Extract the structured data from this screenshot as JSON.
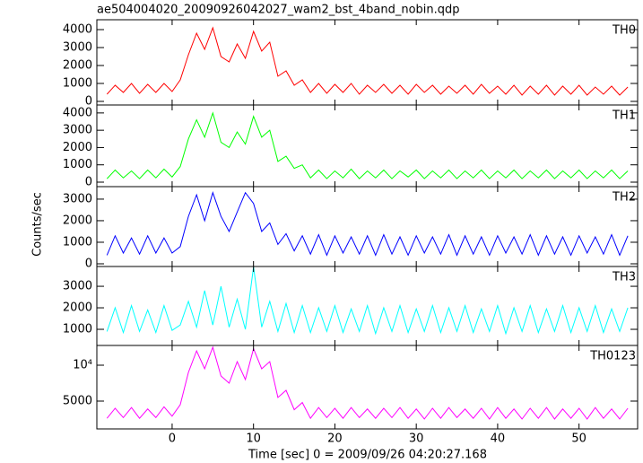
{
  "chart_data": {
    "type": "line",
    "title": "ae504004020_20090926042027_wam2_bst_4band_nobin.qdp",
    "xlabel": "Time [sec] 0 = 2009/09/26 04:20:27.168",
    "ylabel": "Counts/sec",
    "xlim": [
      -9.25,
      57.2
    ],
    "xticks": [
      0,
      10,
      20,
      30,
      40,
      50
    ],
    "x": [
      -8,
      -7,
      -6,
      -5,
      -4,
      -3,
      -2,
      -1,
      0,
      1,
      2,
      3,
      4,
      5,
      6,
      7,
      8,
      9,
      10,
      11,
      12,
      13,
      14,
      15,
      16,
      17,
      18,
      19,
      20,
      21,
      22,
      23,
      24,
      25,
      26,
      27,
      28,
      29,
      30,
      31,
      32,
      33,
      34,
      35,
      36,
      37,
      38,
      39,
      40,
      41,
      42,
      43,
      44,
      45,
      46,
      47,
      48,
      49,
      50,
      51,
      52,
      53,
      54,
      55,
      56
    ],
    "panels": [
      {
        "label": "TH0",
        "color": "#ff0000",
        "ylim": [
          -200,
          4550
        ],
        "yticks": [
          0,
          1000,
          2000,
          3000,
          4000
        ],
        "values": [
          400,
          900,
          500,
          1000,
          450,
          950,
          500,
          1000,
          550,
          1200,
          2600,
          3800,
          2900,
          4100,
          2500,
          2200,
          3200,
          2400,
          3900,
          2800,
          3300,
          1400,
          1700,
          900,
          1200,
          500,
          1000,
          450,
          950,
          500,
          1000,
          400,
          900,
          500,
          950,
          450,
          900,
          400,
          950,
          500,
          900,
          400,
          850,
          450,
          900,
          400,
          950,
          450,
          850,
          400,
          900,
          350,
          850,
          400,
          900,
          350,
          850,
          400,
          900,
          350,
          800,
          400,
          850,
          350,
          800
        ]
      },
      {
        "label": "TH1",
        "color": "#00ff00",
        "ylim": [
          -260,
          4460
        ],
        "yticks": [
          0,
          1000,
          2000,
          3000,
          4000
        ],
        "values": [
          200,
          700,
          250,
          650,
          200,
          700,
          250,
          750,
          300,
          900,
          2500,
          3600,
          2600,
          4000,
          2300,
          2000,
          2900,
          2200,
          3800,
          2600,
          3000,
          1200,
          1500,
          800,
          1000,
          250,
          700,
          200,
          650,
          250,
          750,
          200,
          650,
          250,
          700,
          200,
          650,
          300,
          700,
          200,
          650,
          250,
          700,
          200,
          650,
          250,
          700,
          200,
          650,
          250,
          700,
          200,
          650,
          250,
          700,
          200,
          650,
          250,
          700,
          200,
          650,
          250,
          700,
          200,
          650
        ]
      },
      {
        "label": "TH2",
        "color": "#0000ff",
        "ylim": [
          -125,
          3580
        ],
        "yticks": [
          0,
          1000,
          2000,
          3000
        ],
        "values": [
          400,
          1300,
          500,
          1200,
          450,
          1300,
          500,
          1200,
          500,
          800,
          2200,
          3200,
          2000,
          3300,
          2200,
          1500,
          2400,
          3300,
          2800,
          1500,
          1900,
          900,
          1400,
          600,
          1300,
          450,
          1350,
          400,
          1300,
          500,
          1250,
          450,
          1300,
          400,
          1350,
          450,
          1250,
          400,
          1300,
          500,
          1250,
          450,
          1350,
          400,
          1300,
          450,
          1250,
          400,
          1300,
          500,
          1250,
          450,
          1350,
          400,
          1300,
          450,
          1250,
          400,
          1300,
          500,
          1250,
          450,
          1350,
          400,
          1300
        ]
      },
      {
        "label": "TH3",
        "color": "#00ffff",
        "ylim": [
          250,
          3920
        ],
        "yticks": [
          1000,
          2000,
          3000
        ],
        "values": [
          900,
          2000,
          850,
          2100,
          900,
          1900,
          850,
          2100,
          950,
          1200,
          2300,
          1100,
          2800,
          1200,
          3000,
          1100,
          2400,
          1000,
          3900,
          1100,
          2300,
          900,
          2200,
          850,
          2100,
          850,
          2000,
          900,
          2100,
          850,
          1950,
          900,
          2100,
          800,
          2000,
          900,
          2100,
          850,
          1950,
          900,
          2100,
          850,
          2000,
          900,
          2100,
          850,
          1950,
          900,
          2100,
          800,
          2000,
          900,
          2100,
          850,
          1950,
          900,
          2100,
          850,
          2000,
          900,
          2100,
          850,
          1950,
          900,
          2000
        ]
      },
      {
        "label": "TH0123",
        "color": "#ff00ff",
        "ylim": [
          1125,
          12750
        ],
        "yticks": [
          5000,
          {
            "value": 10000,
            "label": "10⁴"
          }
        ],
        "values": [
          2600,
          4000,
          2700,
          4100,
          2600,
          3900,
          2700,
          4200,
          2900,
          4500,
          9000,
          12000,
          9500,
          12500,
          8500,
          7500,
          10500,
          8000,
          12300,
          9500,
          10500,
          5500,
          6500,
          3800,
          4800,
          2600,
          4100,
          2700,
          4000,
          2600,
          4100,
          2700,
          3900,
          2600,
          4000,
          2700,
          4100,
          2600,
          3900,
          2500,
          4000,
          2600,
          4100,
          2700,
          3900,
          2600,
          4000,
          2500,
          4100,
          2600,
          3900,
          2500,
          4000,
          2600,
          4100,
          2500,
          3900,
          2600,
          4000,
          2500,
          4100,
          2600,
          3900,
          2500,
          4000
        ]
      }
    ]
  }
}
